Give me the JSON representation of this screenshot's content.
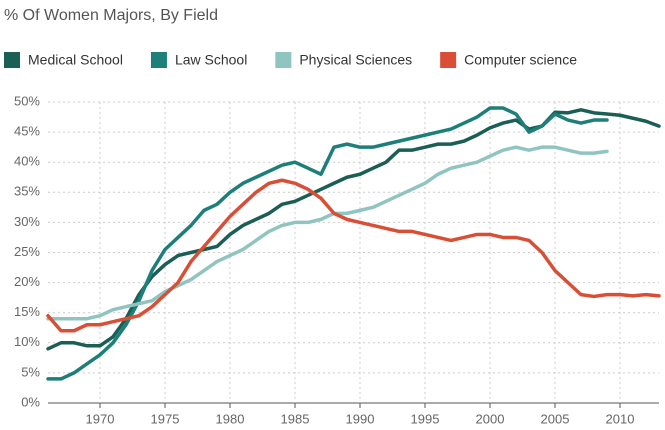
{
  "chart_data": {
    "type": "line",
    "title": "% Of Women Majors, By Field",
    "legend": "top",
    "grid": true,
    "xlim": [
      1966,
      2013
    ],
    "xticks": [
      1970,
      1975,
      1980,
      1985,
      1990,
      1995,
      2000,
      2005,
      2010
    ],
    "ylim": [
      0,
      50
    ],
    "yticks": [
      {
        "value": 0,
        "label": "0%"
      },
      {
        "value": 5,
        "label": "5%"
      },
      {
        "value": 10,
        "label": "10%"
      },
      {
        "value": 15,
        "label": "15%"
      },
      {
        "value": 20,
        "label": "20%"
      },
      {
        "value": 25,
        "label": "25%"
      },
      {
        "value": 30,
        "label": "30%"
      },
      {
        "value": 35,
        "label": "35%"
      },
      {
        "value": 40,
        "label": "40%"
      },
      {
        "value": 45,
        "label": "45%"
      },
      {
        "value": 50,
        "label": "50%"
      }
    ],
    "x": [
      1966,
      1967,
      1968,
      1969,
      1970,
      1971,
      1972,
      1973,
      1974,
      1975,
      1976,
      1977,
      1978,
      1979,
      1980,
      1981,
      1982,
      1983,
      1984,
      1985,
      1986,
      1987,
      1988,
      1989,
      1990,
      1991,
      1992,
      1993,
      1994,
      1995,
      1996,
      1997,
      1998,
      1999,
      2000,
      2001,
      2002,
      2003,
      2004,
      2005,
      2006,
      2007,
      2008,
      2009,
      2010,
      2011,
      2012,
      2013
    ],
    "series": [
      {
        "name": "Medical School",
        "color": "#1a5e55",
        "values": [
          9,
          10,
          10,
          9.5,
          9.5,
          11,
          14,
          18,
          21,
          23,
          24.5,
          25,
          25.5,
          26,
          28,
          29.5,
          30.5,
          31.5,
          33,
          33.5,
          34.5,
          35.5,
          36.5,
          37.5,
          38,
          39,
          40,
          42,
          42,
          42.5,
          43,
          43,
          43.5,
          44.5,
          45.7,
          46.5,
          47,
          45.5,
          46,
          48.3,
          48.2,
          48.7,
          48.2,
          48,
          47.8,
          47.3,
          46.8,
          46
        ]
      },
      {
        "name": "Law School",
        "color": "#1d7f7a",
        "values": [
          4,
          4,
          5,
          6.5,
          8,
          10,
          13,
          17,
          22,
          25.5,
          27.5,
          29.5,
          32,
          33,
          35,
          36.5,
          37.5,
          38.5,
          39.5,
          40,
          39,
          38,
          42.5,
          43,
          42.5,
          42.5,
          43,
          43.5,
          44,
          44.5,
          45,
          45.5,
          46.5,
          47.5,
          49,
          49,
          48,
          45,
          46,
          48,
          47,
          46.5,
          47,
          47,
          null,
          null,
          null,
          null
        ]
      },
      {
        "name": "Physical Sciences",
        "color": "#8fc4c0",
        "values": [
          14,
          14,
          14,
          14,
          14.5,
          15.5,
          16,
          16.5,
          17,
          18.5,
          19.5,
          20.5,
          22,
          23.5,
          24.5,
          25.5,
          27,
          28.5,
          29.5,
          30,
          30,
          30.5,
          31.5,
          31.5,
          32,
          32.5,
          33.5,
          34.5,
          35.5,
          36.5,
          38,
          39,
          39.5,
          40,
          41,
          42,
          42.5,
          42,
          42.5,
          42.5,
          42,
          41.5,
          41.5,
          41.8,
          null,
          null,
          null,
          null
        ]
      },
      {
        "name": "Computer science",
        "color": "#d94f35",
        "values": [
          14.5,
          12,
          12,
          13,
          13,
          13.5,
          14,
          14.5,
          16,
          18,
          20,
          23.5,
          26,
          28.5,
          31,
          33,
          35,
          36.5,
          37,
          36.5,
          35.5,
          34,
          31.5,
          30.5,
          30,
          29.5,
          29,
          28.5,
          28.5,
          28,
          27.5,
          27,
          27.5,
          28,
          28,
          27.5,
          27.5,
          27,
          25,
          22,
          20,
          18,
          17.7,
          18,
          18,
          17.8,
          18,
          17.8
        ]
      }
    ]
  }
}
